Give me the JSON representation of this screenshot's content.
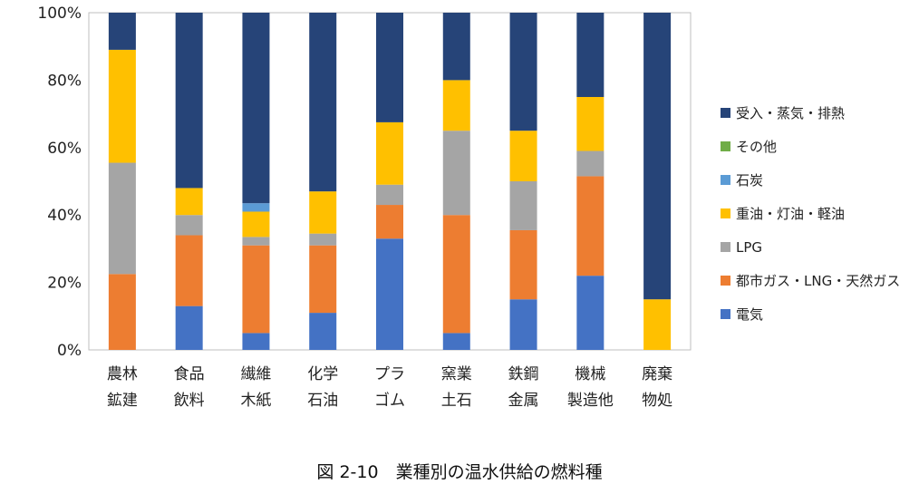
{
  "chart_data": {
    "type": "bar",
    "stacked": true,
    "percent": true,
    "categories": [
      [
        "農林",
        "鉱建"
      ],
      [
        "食品",
        "飲料"
      ],
      [
        "繊維",
        "木紙"
      ],
      [
        "化学",
        "石油"
      ],
      [
        "プラ",
        "ゴム"
      ],
      [
        "窯業",
        "土石"
      ],
      [
        "鉄鋼",
        "金属"
      ],
      [
        "機械",
        "製造他"
      ],
      [
        "廃棄",
        "物処"
      ]
    ],
    "series": [
      {
        "name": "電気",
        "color": "#4472C4",
        "values": [
          0,
          13,
          5,
          11,
          33,
          5,
          15,
          22,
          0
        ]
      },
      {
        "name": "都市ガス・LNG・天然ガス",
        "color": "#ED7D31",
        "values": [
          22.5,
          21,
          26,
          20,
          10,
          35,
          20.5,
          29.5,
          0
        ]
      },
      {
        "name": "LPG",
        "color": "#A5A5A5",
        "values": [
          33,
          6,
          2.5,
          3.5,
          6,
          25,
          14.5,
          7.5,
          0
        ]
      },
      {
        "name": "重油・灯油・軽油",
        "color": "#FFC000",
        "values": [
          33.5,
          8,
          7.5,
          12.5,
          18.5,
          15,
          15,
          16,
          15
        ]
      },
      {
        "name": "石炭",
        "color": "#5B9BD5",
        "values": [
          0,
          0,
          2.5,
          0,
          0,
          0,
          0,
          0,
          0
        ]
      },
      {
        "name": "その他",
        "color": "#70AD47",
        "values": [
          0,
          0,
          0,
          0,
          0,
          0,
          0,
          0,
          0
        ]
      },
      {
        "name": "受入・蒸気・排熱",
        "color": "#264478",
        "values": [
          11,
          52,
          56.5,
          53,
          32.5,
          20,
          35,
          25,
          85
        ]
      }
    ],
    "y_ticks": [
      "0%",
      "20%",
      "40%",
      "60%",
      "80%",
      "100%"
    ],
    "ylim": [
      0,
      100
    ],
    "legend_order": [
      "受入・蒸気・排熱",
      "その他",
      "石炭",
      "重油・灯油・軽油",
      "LPG",
      "都市ガス・LNG・天然ガス",
      "電気"
    ],
    "legend_position": "right",
    "grid": false
  },
  "caption": "図 2-10　業種別の温水供給の燃料種"
}
